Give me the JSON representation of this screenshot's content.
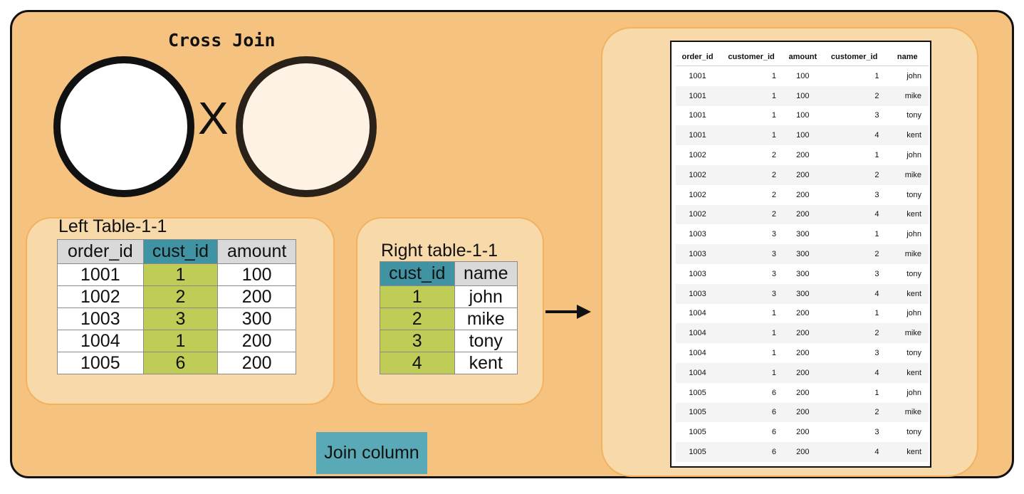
{
  "diagram": {
    "title": "Cross Join",
    "operator": "X",
    "legend_label": "Join column",
    "colors": {
      "background": "#f5c27f",
      "panel": "#f8d9aa",
      "join_header": "#3f93a3",
      "join_cells": "#bfcc55",
      "legend": "#5aa9b6",
      "header": "#d9d9d9"
    }
  },
  "left_table": {
    "label": "Left Table-1-1",
    "columns": [
      "order_id",
      "cust_id",
      "amount"
    ],
    "rows": [
      [
        "1001",
        "1",
        "100"
      ],
      [
        "1002",
        "2",
        "200"
      ],
      [
        "1003",
        "3",
        "300"
      ],
      [
        "1004",
        "1",
        "200"
      ],
      [
        "1005",
        "6",
        "200"
      ]
    ]
  },
  "right_table": {
    "label": "Right table-1-1",
    "columns": [
      "cust_id",
      "name"
    ],
    "rows": [
      [
        "1",
        "john"
      ],
      [
        "2",
        "mike"
      ],
      [
        "3",
        "tony"
      ],
      [
        "4",
        "kent"
      ]
    ]
  },
  "result_table": {
    "columns": [
      "order_id",
      "customer_id",
      "amount",
      "customer_id",
      "name"
    ],
    "rows": [
      [
        "1001",
        "1",
        "100",
        "1",
        "john"
      ],
      [
        "1001",
        "1",
        "100",
        "2",
        "mike"
      ],
      [
        "1001",
        "1",
        "100",
        "3",
        "tony"
      ],
      [
        "1001",
        "1",
        "100",
        "4",
        "kent"
      ],
      [
        "1002",
        "2",
        "200",
        "1",
        "john"
      ],
      [
        "1002",
        "2",
        "200",
        "2",
        "mike"
      ],
      [
        "1002",
        "2",
        "200",
        "3",
        "tony"
      ],
      [
        "1002",
        "2",
        "200",
        "4",
        "kent"
      ],
      [
        "1003",
        "3",
        "300",
        "1",
        "john"
      ],
      [
        "1003",
        "3",
        "300",
        "2",
        "mike"
      ],
      [
        "1003",
        "3",
        "300",
        "3",
        "tony"
      ],
      [
        "1003",
        "3",
        "300",
        "4",
        "kent"
      ],
      [
        "1004",
        "1",
        "200",
        "1",
        "john"
      ],
      [
        "1004",
        "1",
        "200",
        "2",
        "mike"
      ],
      [
        "1004",
        "1",
        "200",
        "3",
        "tony"
      ],
      [
        "1004",
        "1",
        "200",
        "4",
        "kent"
      ],
      [
        "1005",
        "6",
        "200",
        "1",
        "john"
      ],
      [
        "1005",
        "6",
        "200",
        "2",
        "mike"
      ],
      [
        "1005",
        "6",
        "200",
        "3",
        "tony"
      ],
      [
        "1005",
        "6",
        "200",
        "4",
        "kent"
      ]
    ]
  }
}
